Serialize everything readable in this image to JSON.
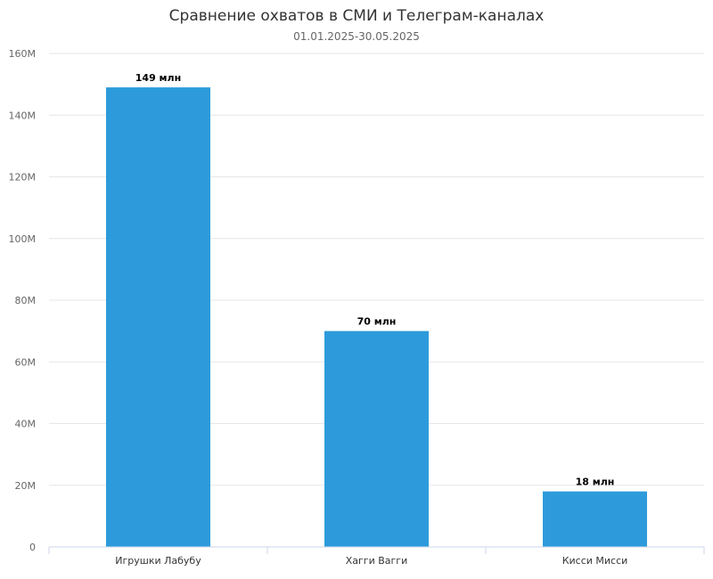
{
  "chart_data": {
    "type": "bar",
    "title": "Сравнение охватов в СМИ и Телеграм-каналах",
    "subtitle": "01.01.2025-30.05.2025",
    "categories": [
      "Игрушки Лабубу",
      "Хагги Вагги",
      "Кисси Мисси"
    ],
    "values": [
      149,
      70,
      18
    ],
    "value_unit": "M",
    "data_labels": [
      "149 млн",
      "70 млн",
      "18 млн"
    ],
    "ylim": [
      0,
      160
    ],
    "yticks": [
      0,
      20,
      40,
      60,
      80,
      100,
      120,
      140,
      160
    ],
    "ytick_labels": [
      "0",
      "20M",
      "40M",
      "60M",
      "80M",
      "100M",
      "120M",
      "140M",
      "160M"
    ],
    "grid": true,
    "legend": "none",
    "colors": {
      "bar": "#2d9bdb",
      "grid": "#e6e6e6",
      "axis": "#ccd6eb"
    }
  }
}
